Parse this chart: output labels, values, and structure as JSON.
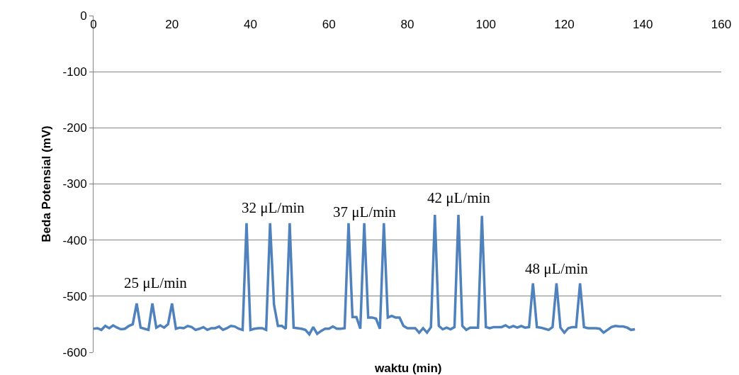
{
  "chart_data": {
    "type": "line",
    "xlabel": "waktu (min)",
    "ylabel": "Beda Potensial (mV)",
    "x": [
      0,
      1,
      2,
      3,
      4,
      5,
      6,
      7,
      8,
      9,
      10,
      11,
      12,
      13,
      14,
      15,
      16,
      17,
      18,
      19,
      20,
      21,
      22,
      23,
      24,
      25,
      26,
      27,
      28,
      29,
      30,
      31,
      32,
      33,
      34,
      35,
      36,
      37,
      38,
      39,
      40,
      41,
      42,
      43,
      44,
      45,
      46,
      47,
      48,
      49,
      50,
      51,
      52,
      53,
      54,
      55,
      56,
      57,
      58,
      59,
      60,
      61,
      62,
      63,
      64,
      65,
      66,
      67,
      68,
      69,
      70,
      71,
      72,
      73,
      74,
      75,
      76,
      77,
      78,
      79,
      80,
      81,
      82,
      83,
      84,
      85,
      86,
      87,
      88,
      89,
      90,
      91,
      92,
      93,
      94,
      95,
      96,
      97,
      98,
      99,
      100,
      101,
      102,
      103,
      104,
      105,
      106,
      107,
      108,
      109,
      110,
      111,
      112,
      113,
      114,
      115,
      116,
      117,
      118,
      119,
      120,
      121,
      122,
      123,
      124,
      125,
      126,
      127,
      128,
      129,
      130,
      131,
      132,
      133,
      134,
      135,
      136,
      137,
      138
    ],
    "series": [
      {
        "color": "#4f81bd",
        "values": [
          -558,
          -557,
          -560,
          -553,
          -557,
          -552,
          -556,
          -559,
          -558,
          -553,
          -550,
          -513,
          -556,
          -558,
          -560,
          -513,
          -556,
          -552,
          -556,
          -550,
          -513,
          -558,
          -556,
          -557,
          -553,
          -555,
          -560,
          -558,
          -555,
          -560,
          -557,
          -557,
          -554,
          -560,
          -557,
          -553,
          -554,
          -558,
          -560,
          -370,
          -560,
          -558,
          -557,
          -557,
          -560,
          -370,
          -515,
          -553,
          -553,
          -558,
          -370,
          -556,
          -557,
          -558,
          -560,
          -568,
          -555,
          -567,
          -562,
          -558,
          -558,
          -554,
          -558,
          -558,
          -557,
          -370,
          -537,
          -537,
          -558,
          -370,
          -538,
          -538,
          -540,
          -558,
          -370,
          -538,
          -535,
          -538,
          -538,
          -553,
          -557,
          -557,
          -557,
          -565,
          -557,
          -565,
          -555,
          -355,
          -553,
          -559,
          -556,
          -559,
          -555,
          -355,
          -553,
          -560,
          -556,
          -556,
          -556,
          -357,
          -555,
          -557,
          -555,
          -555,
          -555,
          -552,
          -556,
          -553,
          -556,
          -553,
          -556,
          -555,
          -477,
          -555,
          -556,
          -558,
          -560,
          -555,
          -477,
          -556,
          -565,
          -557,
          -555,
          -555,
          -477,
          -555,
          -557,
          -557,
          -557,
          -558,
          -565,
          -560,
          -555,
          -553,
          -554,
          -554,
          -556,
          -560,
          -559
        ]
      }
    ],
    "xlim": [
      0,
      160
    ],
    "xticks": [
      0,
      20,
      40,
      60,
      80,
      100,
      120,
      140,
      160
    ],
    "ylim": [
      -600,
      0
    ],
    "yticks": [
      -600,
      -500,
      -400,
      -300,
      -200,
      -100,
      0
    ],
    "grid": "y",
    "marker": "none",
    "line_style": "solid",
    "annotations": [
      "25 μL/min",
      "32 μL/min",
      "37 μL/min",
      "42 μL/min",
      "48 μL/min"
    ]
  }
}
